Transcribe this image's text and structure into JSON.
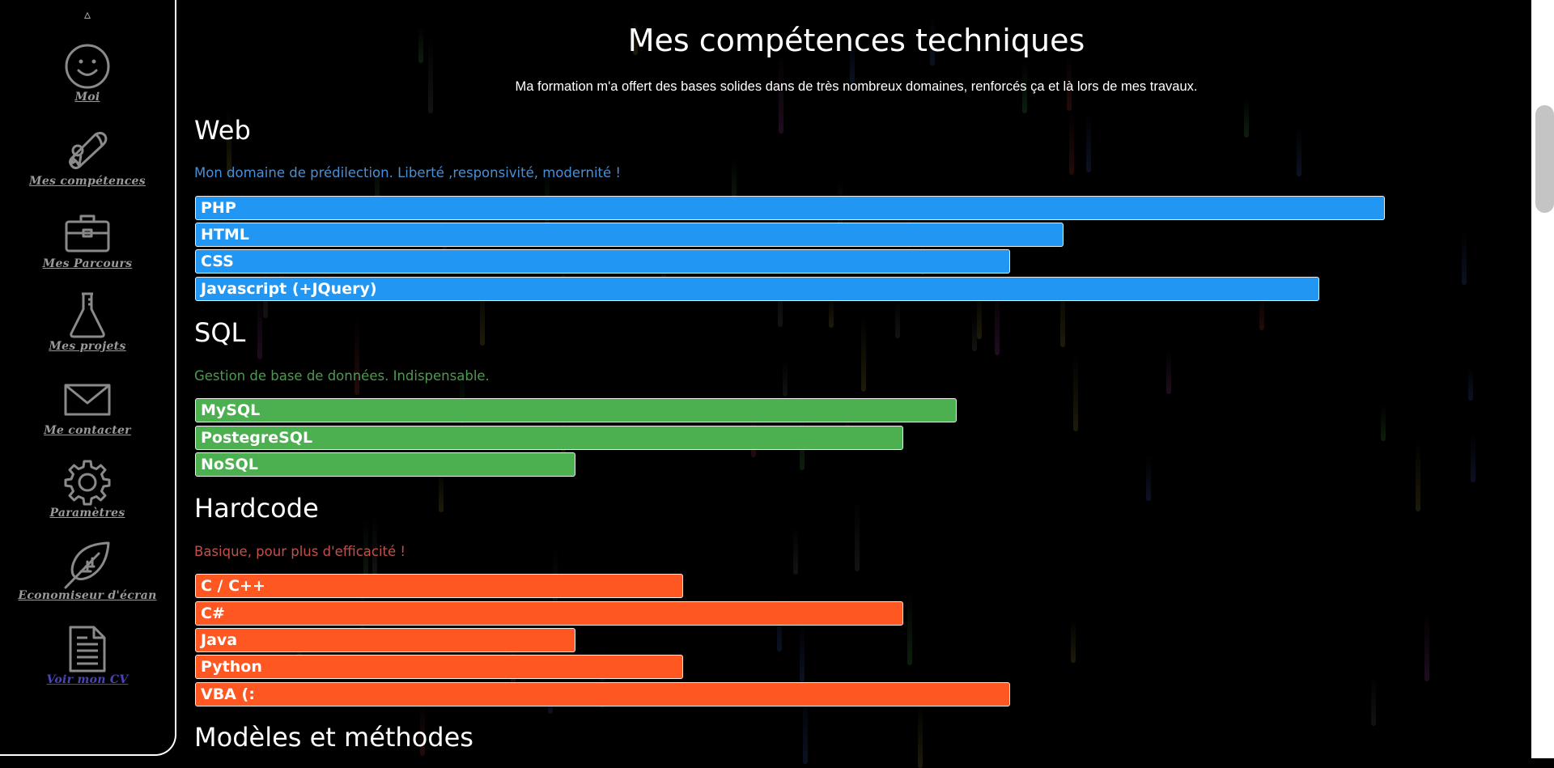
{
  "sidebar": {
    "scroll_up": "▵",
    "items": [
      {
        "label": "Moi",
        "icon": "smiley-icon"
      },
      {
        "label": "Mes compétences",
        "icon": "diploma-icon"
      },
      {
        "label": "Mes Parcours",
        "icon": "briefcase-icon"
      },
      {
        "label": "Mes projets",
        "icon": "flask-icon"
      },
      {
        "label": "Me contacter",
        "icon": "envelope-icon"
      },
      {
        "label": "Paramètres",
        "icon": "gear-icon"
      },
      {
        "label": "Economiseur d'écran",
        "icon": "leaf-icon"
      },
      {
        "label": "Voir mon CV",
        "icon": "document-icon"
      }
    ]
  },
  "main": {
    "title": "Mes compétences techniques",
    "subtitle": "Ma formation m'a offert des bases solides dans de très nombreux domaines, renforcés ça et là lors de mes travaux.",
    "sections": [
      {
        "title": "Web",
        "description": "Mon domaine de prédilection. Liberté ,responsivité, modernité !",
        "desc_color": "#4a8fd4",
        "bar_color": "#2196F3",
        "skills": [
          {
            "name": "PHP",
            "level": 1.0
          },
          {
            "name": "HTML",
            "level": 0.73
          },
          {
            "name": "CSS",
            "level": 0.685
          },
          {
            "name": "Javascript (+JQuery)",
            "level": 0.945
          }
        ]
      },
      {
        "title": "SQL",
        "description": "Gestion de base de données. Indispensable.",
        "desc_color": "#4d9a4f",
        "bar_color": "#4CAF50",
        "skills": [
          {
            "name": "MySQL",
            "level": 0.64
          },
          {
            "name": "PostegreSQL",
            "level": 0.595
          },
          {
            "name": "NoSQL",
            "level": 0.32
          }
        ]
      },
      {
        "title": "Hardcode",
        "description": "Basique, pour plus d'efficacité !",
        "desc_color": "#c0504d",
        "bar_color": "#FF5722",
        "skills": [
          {
            "name": "C / C++",
            "level": 0.41
          },
          {
            "name": "C#",
            "level": 0.595
          },
          {
            "name": "Java",
            "level": 0.32
          },
          {
            "name": "Python",
            "level": 0.41
          },
          {
            "name": "VBA (:",
            "level": 0.685
          }
        ]
      },
      {
        "title": "Modèles et méthodes"
      }
    ]
  }
}
